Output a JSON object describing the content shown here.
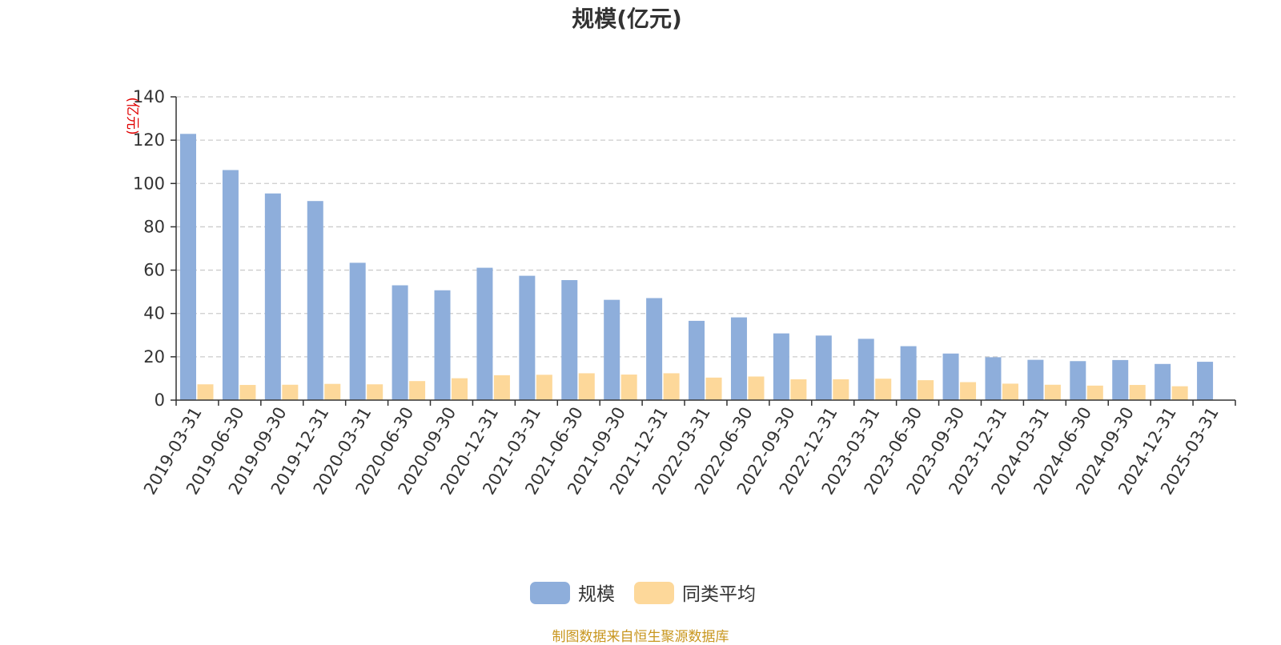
{
  "chart_data": {
    "type": "bar",
    "title": "规模(亿元)",
    "ylabel": "(亿元)",
    "xlabel": "",
    "ylim": [
      0,
      140
    ],
    "yticks": [
      0,
      20,
      40,
      60,
      80,
      100,
      120,
      140
    ],
    "grid": true,
    "legend_position": "bottom-center",
    "categories": [
      "2019-03-31",
      "2019-06-30",
      "2019-09-30",
      "2019-12-31",
      "2020-03-31",
      "2020-06-30",
      "2020-09-30",
      "2020-12-31",
      "2021-03-31",
      "2021-06-30",
      "2021-09-30",
      "2021-12-31",
      "2022-03-31",
      "2022-06-30",
      "2022-09-30",
      "2022-12-31",
      "2023-03-31",
      "2023-06-30",
      "2023-09-30",
      "2023-12-31",
      "2024-03-31",
      "2024-06-30",
      "2024-09-30",
      "2024-12-31",
      "2025-03-31"
    ],
    "series": [
      {
        "name": "规模",
        "color": "#8eaedb",
        "values": [
          122.9,
          106.2,
          95.4,
          91.9,
          63.4,
          53.0,
          50.7,
          61.1,
          57.4,
          55.4,
          46.3,
          47.1,
          36.6,
          38.2,
          30.8,
          29.8,
          28.3,
          24.9,
          21.5,
          19.8,
          18.6,
          18.0,
          18.5,
          16.7,
          17.7
        ]
      },
      {
        "name": "同类平均",
        "color": "#fdd89a",
        "values": [
          7.3,
          7.0,
          7.1,
          7.5,
          7.3,
          8.8,
          10.1,
          11.5,
          11.7,
          12.4,
          11.8,
          12.4,
          10.4,
          10.9,
          9.6,
          9.6,
          9.9,
          9.2,
          8.3,
          7.6,
          7.1,
          6.7,
          7.0,
          6.4,
          null
        ]
      }
    ]
  },
  "footer": {
    "text": "制图数据来自恒生聚源数据库"
  },
  "colors": {
    "axis": "#333333",
    "grid": "#cccccc",
    "ylabel": "#e00000",
    "title": "#333333",
    "footer": "#c8961e"
  }
}
